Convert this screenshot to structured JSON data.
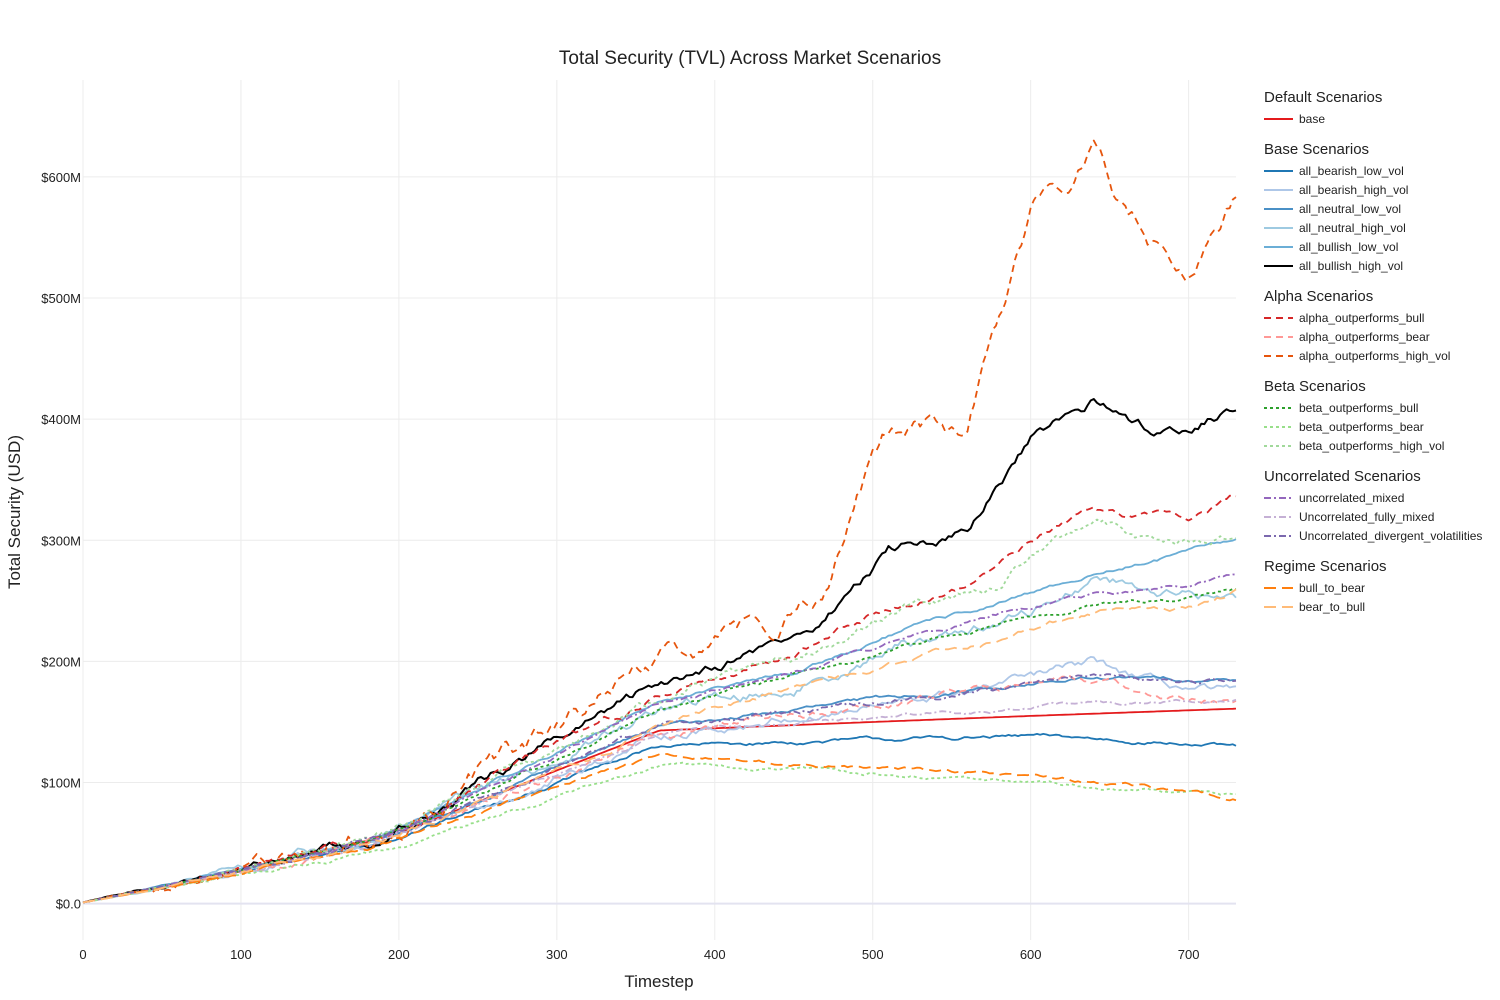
{
  "chart_data": {
    "type": "line",
    "title": "Total Security (TVL) Across Market Scenarios",
    "xlabel": "Timestep",
    "ylabel": "Total Security (USD)",
    "xlim": [
      0,
      730
    ],
    "ylim": [
      -30000000,
      680000000
    ],
    "x_ticks": [
      0,
      100,
      200,
      300,
      400,
      500,
      600,
      700
    ],
    "y_ticks": [
      {
        "value": 0,
        "label": "$0.0"
      },
      {
        "value": 100000000,
        "label": "$100M"
      },
      {
        "value": 200000000,
        "label": "$200M"
      },
      {
        "value": 300000000,
        "label": "$300M"
      },
      {
        "value": 400000000,
        "label": "$400M"
      },
      {
        "value": 500000000,
        "label": "$500M"
      },
      {
        "value": 600000000,
        "label": "$600M"
      }
    ],
    "grid": true,
    "legend_position": "right",
    "legend_groups": [
      {
        "title": "Default Scenarios",
        "items": [
          "base"
        ]
      },
      {
        "title": "Base Scenarios",
        "items": [
          "all_bearish_low_vol",
          "all_bearish_high_vol",
          "all_neutral_low_vol",
          "all_neutral_high_vol",
          "all_bullish_low_vol",
          "all_bullish_high_vol"
        ]
      },
      {
        "title": "Alpha Scenarios",
        "items": [
          "alpha_outperforms_bull",
          "alpha_outperforms_bear",
          "alpha_outperforms_high_vol"
        ]
      },
      {
        "title": "Beta Scenarios",
        "items": [
          "beta_outperforms_bull",
          "beta_outperforms_bear",
          "beta_outperforms_high_vol"
        ]
      },
      {
        "title": "Uncorrelated Scenarios",
        "items": [
          "uncorrelated_mixed",
          "Uncorrelated_fully_mixed",
          "Uncorrelated_divergent_volatilities"
        ]
      },
      {
        "title": "Regime Scenarios",
        "items": [
          "bull_to_bear",
          "bear_to_bull"
        ]
      }
    ],
    "series": [
      {
        "name": "base",
        "color": "#e41a1c",
        "dash": "solid",
        "noise": 0,
        "points": [
          [
            0,
            1
          ],
          [
            100,
            28
          ],
          [
            200,
            58
          ],
          [
            300,
            110
          ],
          [
            365,
            143
          ],
          [
            500,
            150
          ],
          [
            600,
            155
          ],
          [
            730,
            161
          ]
        ]
      },
      {
        "name": "all_bearish_low_vol",
        "color": "#1f77b4",
        "dash": "solid",
        "noise": 2,
        "points": [
          [
            0,
            1
          ],
          [
            100,
            26
          ],
          [
            180,
            48
          ],
          [
            200,
            56
          ],
          [
            300,
            100
          ],
          [
            365,
            130
          ],
          [
            500,
            135
          ],
          [
            600,
            138
          ],
          [
            680,
            134
          ],
          [
            730,
            129
          ]
        ]
      },
      {
        "name": "all_bearish_high_vol",
        "color": "#aec7e8",
        "dash": "solid",
        "noise": 5,
        "points": [
          [
            0,
            1
          ],
          [
            100,
            26
          ],
          [
            180,
            48
          ],
          [
            200,
            57
          ],
          [
            300,
            105
          ],
          [
            365,
            138
          ],
          [
            450,
            155
          ],
          [
            520,
            165
          ],
          [
            600,
            185
          ],
          [
            640,
            198
          ],
          [
            680,
            180
          ],
          [
            730,
            172
          ]
        ]
      },
      {
        "name": "all_neutral_low_vol",
        "color": "#4a90c6",
        "dash": "solid",
        "noise": 2,
        "points": [
          [
            0,
            1
          ],
          [
            100,
            27
          ],
          [
            180,
            50
          ],
          [
            200,
            59
          ],
          [
            300,
            112
          ],
          [
            365,
            146
          ],
          [
            500,
            168
          ],
          [
            600,
            182
          ],
          [
            640,
            186
          ],
          [
            730,
            185
          ]
        ]
      },
      {
        "name": "all_neutral_high_vol",
        "color": "#9ecae1",
        "dash": "solid",
        "noise": 6,
        "points": [
          [
            0,
            1
          ],
          [
            100,
            27
          ],
          [
            180,
            50
          ],
          [
            200,
            60
          ],
          [
            300,
            118
          ],
          [
            365,
            160
          ],
          [
            450,
            178
          ],
          [
            520,
            215
          ],
          [
            600,
            240
          ],
          [
            640,
            270
          ],
          [
            700,
            255
          ],
          [
            730,
            252
          ]
        ]
      },
      {
        "name": "all_bullish_low_vol",
        "color": "#6baed6",
        "dash": "solid",
        "noise": 2,
        "points": [
          [
            0,
            1
          ],
          [
            100,
            28
          ],
          [
            180,
            51
          ],
          [
            200,
            62
          ],
          [
            300,
            125
          ],
          [
            365,
            168
          ],
          [
            450,
            190
          ],
          [
            520,
            226
          ],
          [
            600,
            255
          ],
          [
            640,
            272
          ],
          [
            700,
            290
          ],
          [
            730,
            300
          ]
        ]
      },
      {
        "name": "all_bullish_high_vol",
        "color": "#000000",
        "dash": "solid",
        "noise": 6,
        "points": [
          [
            0,
            1
          ],
          [
            100,
            29
          ],
          [
            180,
            53
          ],
          [
            200,
            64
          ],
          [
            300,
            135
          ],
          [
            365,
            180
          ],
          [
            400,
            200
          ],
          [
            450,
            220
          ],
          [
            470,
            232
          ],
          [
            490,
            265
          ],
          [
            510,
            290
          ],
          [
            540,
            300
          ],
          [
            560,
            305
          ],
          [
            600,
            380
          ],
          [
            640,
            412
          ],
          [
            680,
            390
          ],
          [
            730,
            410
          ]
        ]
      },
      {
        "name": "alpha_outperforms_bull",
        "color": "#d62728",
        "dash": "7,5",
        "noise": 4,
        "points": [
          [
            0,
            1
          ],
          [
            100,
            28
          ],
          [
            180,
            52
          ],
          [
            200,
            62
          ],
          [
            300,
            130
          ],
          [
            365,
            172
          ],
          [
            450,
            208
          ],
          [
            520,
            250
          ],
          [
            560,
            262
          ],
          [
            600,
            300
          ],
          [
            640,
            325
          ],
          [
            700,
            318
          ],
          [
            730,
            338
          ]
        ]
      },
      {
        "name": "alpha_outperforms_bear",
        "color": "#ff9896",
        "dash": "7,5",
        "noise": 4,
        "points": [
          [
            0,
            1
          ],
          [
            100,
            26
          ],
          [
            180,
            48
          ],
          [
            200,
            57
          ],
          [
            300,
            104
          ],
          [
            365,
            140
          ],
          [
            450,
            155
          ],
          [
            520,
            165
          ],
          [
            600,
            182
          ],
          [
            640,
            184
          ],
          [
            680,
            172
          ],
          [
            730,
            168
          ]
        ]
      },
      {
        "name": "alpha_outperforms_high_vol",
        "color": "#e6550d",
        "dash": "7,5",
        "noise": 11,
        "points": [
          [
            0,
            1
          ],
          [
            100,
            29
          ],
          [
            180,
            54
          ],
          [
            200,
            66
          ],
          [
            300,
            142
          ],
          [
            365,
            195
          ],
          [
            400,
            212
          ],
          [
            440,
            235
          ],
          [
            470,
            262
          ],
          [
            490,
            330
          ],
          [
            510,
            385
          ],
          [
            540,
            395
          ],
          [
            560,
            385
          ],
          [
            580,
            480
          ],
          [
            600,
            568
          ],
          [
            620,
            590
          ],
          [
            640,
            632
          ],
          [
            660,
            570
          ],
          [
            680,
            540
          ],
          [
            700,
            535
          ],
          [
            730,
            580
          ]
        ]
      },
      {
        "name": "beta_outperforms_bull",
        "color": "#2ca02c",
        "dash": "3,3",
        "noise": 2,
        "points": [
          [
            0,
            1
          ],
          [
            100,
            27
          ],
          [
            180,
            50
          ],
          [
            200,
            60
          ],
          [
            300,
            120
          ],
          [
            365,
            160
          ],
          [
            450,
            188
          ],
          [
            520,
            212
          ],
          [
            600,
            235
          ],
          [
            640,
            245
          ],
          [
            700,
            252
          ],
          [
            730,
            260
          ]
        ]
      },
      {
        "name": "beta_outperforms_bear",
        "color": "#98df8a",
        "dash": "3,3",
        "noise": 2,
        "points": [
          [
            0,
            1
          ],
          [
            100,
            24
          ],
          [
            180,
            40
          ],
          [
            200,
            48
          ],
          [
            300,
            88
          ],
          [
            365,
            115
          ],
          [
            450,
            110
          ],
          [
            520,
            106
          ],
          [
            600,
            100
          ],
          [
            680,
            92
          ],
          [
            730,
            87
          ]
        ]
      },
      {
        "name": "beta_outperforms_high_vol",
        "color": "#a1d99b",
        "dash": "3,3",
        "noise": 5,
        "points": [
          [
            0,
            1
          ],
          [
            100,
            28
          ],
          [
            180,
            52
          ],
          [
            200,
            62
          ],
          [
            300,
            128
          ],
          [
            365,
            170
          ],
          [
            450,
            205
          ],
          [
            520,
            248
          ],
          [
            580,
            258
          ],
          [
            600,
            292
          ],
          [
            640,
            318
          ],
          [
            680,
            300
          ],
          [
            730,
            305
          ]
        ]
      },
      {
        "name": "uncorrelated_mixed",
        "color": "#9467bd",
        "dash": "7,3,2,3",
        "noise": 2,
        "points": [
          [
            0,
            1
          ],
          [
            100,
            27
          ],
          [
            180,
            50
          ],
          [
            200,
            60
          ],
          [
            300,
            122
          ],
          [
            365,
            165
          ],
          [
            450,
            190
          ],
          [
            520,
            218
          ],
          [
            600,
            245
          ],
          [
            640,
            255
          ],
          [
            700,
            262
          ],
          [
            730,
            273
          ]
        ]
      },
      {
        "name": "Uncorrelated_fully_mixed",
        "color": "#c5b0d5",
        "dash": "7,3,2,3",
        "noise": 2,
        "points": [
          [
            0,
            1
          ],
          [
            100,
            26
          ],
          [
            180,
            48
          ],
          [
            200,
            58
          ],
          [
            300,
            106
          ],
          [
            365,
            140
          ],
          [
            450,
            150
          ],
          [
            520,
            155
          ],
          [
            600,
            162
          ],
          [
            640,
            166
          ],
          [
            700,
            168
          ],
          [
            730,
            170
          ]
        ]
      },
      {
        "name": "Uncorrelated_divergent_volatilities",
        "color": "#7b68ae",
        "dash": "7,3,2,3",
        "noise": 3,
        "points": [
          [
            0,
            1
          ],
          [
            100,
            27
          ],
          [
            180,
            50
          ],
          [
            200,
            60
          ],
          [
            300,
            112
          ],
          [
            365,
            147
          ],
          [
            450,
            158
          ],
          [
            520,
            170
          ],
          [
            600,
            182
          ],
          [
            640,
            186
          ],
          [
            700,
            184
          ],
          [
            730,
            186
          ]
        ]
      },
      {
        "name": "bull_to_bear",
        "color": "#ff7f0e",
        "dash": "12,6",
        "noise": 2,
        "points": [
          [
            0,
            1
          ],
          [
            100,
            25
          ],
          [
            180,
            45
          ],
          [
            200,
            53
          ],
          [
            300,
            96
          ],
          [
            365,
            122
          ],
          [
            450,
            116
          ],
          [
            520,
            110
          ],
          [
            600,
            105
          ],
          [
            680,
            95
          ],
          [
            730,
            88
          ]
        ]
      },
      {
        "name": "bear_to_bull",
        "color": "#ffbb78",
        "dash": "12,6",
        "noise": 3,
        "points": [
          [
            0,
            1
          ],
          [
            100,
            26
          ],
          [
            180,
            48
          ],
          [
            200,
            57
          ],
          [
            300,
            108
          ],
          [
            365,
            148
          ],
          [
            450,
            180
          ],
          [
            520,
            200
          ],
          [
            600,
            228
          ],
          [
            640,
            240
          ],
          [
            700,
            245
          ],
          [
            730,
            258
          ]
        ]
      }
    ]
  }
}
